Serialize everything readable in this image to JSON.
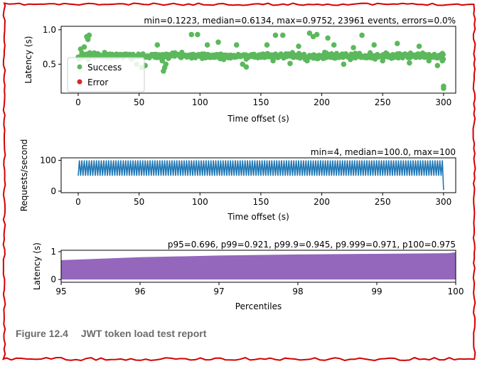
{
  "caption": {
    "number": "Figure 12.4",
    "title": "JWT token load test report"
  },
  "colors": {
    "success": "#5cb85c",
    "error": "#d62728",
    "rps_line": "#1f77b4",
    "percentile_fill": "#9467bd",
    "torn_edge": "#d40000"
  },
  "chart_data": [
    {
      "type": "scatter",
      "title": "min=0.1223, median=0.6134, max=0.9752, 23961 events, errors=0.0%",
      "xlabel": "Time offset (s)",
      "ylabel": "Latency (s)",
      "xlim": [
        -14,
        310
      ],
      "ylim": [
        0.08,
        1.05
      ],
      "xticks": [
        0,
        50,
        100,
        150,
        200,
        250,
        300
      ],
      "yticks": [
        0.5,
        1.0
      ],
      "ytick_labels": [
        "0.5",
        "1.0"
      ],
      "legend": {
        "placement": "left",
        "entries": [
          "Success",
          "Error"
        ]
      },
      "series": [
        {
          "name": "Success",
          "baseline": 0.62,
          "spread": 0.06,
          "x_range": [
            0,
            300
          ],
          "outliers": [
            {
              "x": 7,
              "y": 0.9
            },
            {
              "x": 8,
              "y": 0.86
            },
            {
              "x": 9,
              "y": 0.92
            },
            {
              "x": 2,
              "y": 0.72
            },
            {
              "x": 5,
              "y": 0.75
            },
            {
              "x": 48,
              "y": 0.5
            },
            {
              "x": 52,
              "y": 0.45
            },
            {
              "x": 55,
              "y": 0.48
            },
            {
              "x": 70,
              "y": 0.4
            },
            {
              "x": 71,
              "y": 0.45
            },
            {
              "x": 72,
              "y": 0.5
            },
            {
              "x": 69,
              "y": 0.55
            },
            {
              "x": 65,
              "y": 0.78
            },
            {
              "x": 93,
              "y": 0.93
            },
            {
              "x": 98,
              "y": 0.93
            },
            {
              "x": 106,
              "y": 0.78
            },
            {
              "x": 115,
              "y": 0.82
            },
            {
              "x": 130,
              "y": 0.78
            },
            {
              "x": 135,
              "y": 0.5
            },
            {
              "x": 138,
              "y": 0.46
            },
            {
              "x": 155,
              "y": 0.78
            },
            {
              "x": 160,
              "y": 0.55
            },
            {
              "x": 162,
              "y": 0.92
            },
            {
              "x": 168,
              "y": 0.92
            },
            {
              "x": 174,
              "y": 0.51
            },
            {
              "x": 181,
              "y": 0.76
            },
            {
              "x": 188,
              "y": 0.55
            },
            {
              "x": 190,
              "y": 0.95
            },
            {
              "x": 193,
              "y": 0.9
            },
            {
              "x": 196,
              "y": 0.93
            },
            {
              "x": 205,
              "y": 0.88
            },
            {
              "x": 210,
              "y": 0.78
            },
            {
              "x": 218,
              "y": 0.5
            },
            {
              "x": 226,
              "y": 0.74
            },
            {
              "x": 233,
              "y": 0.92
            },
            {
              "x": 243,
              "y": 0.78
            },
            {
              "x": 250,
              "y": 0.55
            },
            {
              "x": 262,
              "y": 0.8
            },
            {
              "x": 272,
              "y": 0.52
            },
            {
              "x": 280,
              "y": 0.76
            },
            {
              "x": 288,
              "y": 0.55
            },
            {
              "x": 295,
              "y": 0.48
            },
            {
              "x": 299,
              "y": 0.55
            },
            {
              "x": 300,
              "y": 0.18
            },
            {
              "x": 300,
              "y": 0.15
            }
          ]
        },
        {
          "name": "Error",
          "points": []
        }
      ]
    },
    {
      "type": "line",
      "title": "min=4, median=100.0, max=100",
      "xlabel": "Time offset (s)",
      "ylabel": "Requests/second",
      "xlim": [
        -14,
        310
      ],
      "ylim": [
        -5,
        108
      ],
      "xticks": [
        0,
        50,
        100,
        150,
        200,
        250,
        300
      ],
      "yticks": [
        0,
        100
      ],
      "series": [
        {
          "name": "",
          "x_range": [
            0,
            300
          ],
          "high": 100,
          "low": 50,
          "low_every": 2,
          "final": {
            "x": 300,
            "y": 4
          }
        }
      ]
    },
    {
      "type": "area",
      "title": "p95=0.696, p99=0.921, p99.9=0.945, p9.999=0.971, p100=0.975",
      "xlabel": "Percentiles",
      "ylabel": "Latency (s)",
      "xlim": [
        95,
        100
      ],
      "ylim": [
        -0.1,
        1.05
      ],
      "xticks": [
        95,
        96,
        97,
        98,
        99,
        100
      ],
      "yticks": [
        0,
        1
      ],
      "series": [
        {
          "name": "",
          "x": [
            95,
            96,
            97,
            98,
            99,
            99.9,
            100
          ],
          "y": [
            0.696,
            0.8,
            0.86,
            0.9,
            0.921,
            0.945,
            0.975
          ]
        }
      ]
    }
  ]
}
